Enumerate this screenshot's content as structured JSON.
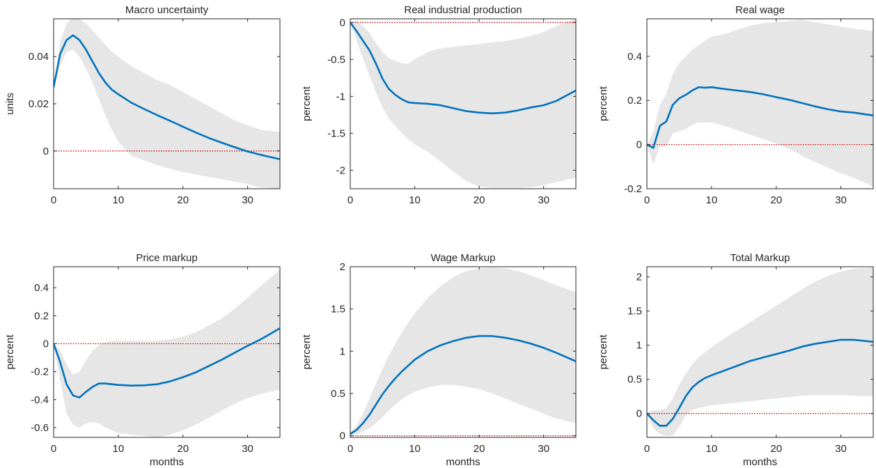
{
  "figure": {
    "ci_color": "#e6e6e6",
    "line_color": "#0072bd",
    "zero_line_color": "#d00000",
    "frame_color": "#262626"
  },
  "chart_data": [
    {
      "type": "line",
      "title": "Macro uncertainty",
      "xlabel": "",
      "ylabel": "units",
      "xlim": [
        0,
        35
      ],
      "ylim": [
        -0.016,
        0.056
      ],
      "xticks": [
        0,
        10,
        20,
        30
      ],
      "yticks": [
        0,
        0.02,
        0.04
      ],
      "ytick_labels": [
        "0",
        "0.02",
        "0.04"
      ],
      "x": [
        0,
        1,
        2,
        3,
        4,
        5,
        6,
        7,
        8,
        9,
        10,
        12,
        14,
        16,
        18,
        20,
        22,
        24,
        26,
        28,
        30,
        32,
        35
      ],
      "series": [
        {
          "values": [
            0.027,
            0.041,
            0.047,
            0.049,
            0.047,
            0.043,
            0.038,
            0.033,
            0.029,
            0.026,
            0.024,
            0.0205,
            0.0178,
            0.0152,
            0.0128,
            0.0103,
            0.0078,
            0.0055,
            0.0035,
            0.0016,
            -0.0002,
            -0.0016,
            -0.0035
          ]
        }
      ],
      "ci_upper": [
        0.027,
        0.046,
        0.054,
        0.057,
        0.056,
        0.054,
        0.051,
        0.048,
        0.045,
        0.042,
        0.04,
        0.036,
        0.033,
        0.03,
        0.028,
        0.025,
        0.022,
        0.019,
        0.016,
        0.013,
        0.011,
        0.009,
        0.008
      ],
      "ci_lower": [
        0.027,
        0.036,
        0.042,
        0.043,
        0.04,
        0.035,
        0.029,
        0.022,
        0.015,
        0.009,
        0.004,
        -0.002,
        -0.004,
        -0.006,
        -0.0075,
        -0.009,
        -0.01,
        -0.011,
        -0.012,
        -0.013,
        -0.014,
        -0.0155,
        -0.016
      ]
    },
    {
      "type": "line",
      "title": "Real industrial production",
      "xlabel": "",
      "ylabel": "percent",
      "xlim": [
        0,
        35
      ],
      "ylim": [
        -2.25,
        0.05
      ],
      "xticks": [
        0,
        10,
        20,
        30
      ],
      "yticks": [
        -2,
        -1.5,
        -1,
        -0.5,
        0
      ],
      "ytick_labels": [
        "-2",
        "-1.5",
        "-1",
        "-0.5",
        "0"
      ],
      "x": [
        0,
        1,
        2,
        3,
        4,
        5,
        6,
        7,
        8,
        9,
        10,
        12,
        14,
        16,
        18,
        20,
        22,
        24,
        26,
        28,
        30,
        32,
        35
      ],
      "series": [
        {
          "values": [
            0,
            -0.12,
            -0.25,
            -0.38,
            -0.56,
            -0.76,
            -0.9,
            -0.98,
            -1.04,
            -1.08,
            -1.09,
            -1.1,
            -1.12,
            -1.16,
            -1.2,
            -1.22,
            -1.23,
            -1.22,
            -1.19,
            -1.15,
            -1.12,
            -1.06,
            -0.92
          ]
        }
      ],
      "ci_upper": [
        0,
        0.02,
        -0.05,
        -0.14,
        -0.28,
        -0.4,
        -0.48,
        -0.52,
        -0.55,
        -0.56,
        -0.5,
        -0.4,
        -0.35,
        -0.33,
        -0.31,
        -0.29,
        -0.27,
        -0.25,
        -0.22,
        -0.18,
        -0.13,
        -0.05,
        0.05
      ],
      "ci_lower": [
        0,
        -0.25,
        -0.5,
        -0.72,
        -0.95,
        -1.15,
        -1.3,
        -1.4,
        -1.5,
        -1.58,
        -1.65,
        -1.75,
        -1.88,
        -2.02,
        -2.15,
        -2.22,
        -2.24,
        -2.24,
        -2.24,
        -2.23,
        -2.2,
        -2.16,
        -2.1
      ]
    },
    {
      "type": "line",
      "title": "Real wage",
      "xlabel": "",
      "ylabel": "percent",
      "xlim": [
        0,
        35
      ],
      "ylim": [
        -0.2,
        0.57
      ],
      "xticks": [
        0,
        10,
        20,
        30
      ],
      "yticks": [
        -0.2,
        0,
        0.2,
        0.4
      ],
      "ytick_labels": [
        "-0.2",
        "0",
        "0.2",
        "0.4"
      ],
      "x": [
        0,
        1,
        2,
        3,
        4,
        5,
        6,
        7,
        8,
        9,
        10,
        12,
        14,
        16,
        18,
        20,
        22,
        24,
        26,
        28,
        30,
        32,
        35
      ],
      "series": [
        {
          "values": [
            0,
            -0.015,
            0.085,
            0.105,
            0.18,
            0.21,
            0.225,
            0.245,
            0.26,
            0.258,
            0.26,
            0.252,
            0.245,
            0.238,
            0.228,
            0.215,
            0.203,
            0.188,
            0.173,
            0.16,
            0.15,
            0.145,
            0.132
          ]
        }
      ],
      "ci_upper": [
        0,
        0.06,
        0.18,
        0.23,
        0.32,
        0.37,
        0.4,
        0.43,
        0.45,
        0.47,
        0.49,
        0.5,
        0.52,
        0.54,
        0.55,
        0.555,
        0.56,
        0.565,
        0.555,
        0.545,
        0.535,
        0.525,
        0.515
      ],
      "ci_lower": [
        0,
        -0.09,
        -0.01,
        -0.01,
        0.05,
        0.06,
        0.07,
        0.09,
        0.1,
        0.1,
        0.1,
        0.085,
        0.065,
        0.045,
        0.025,
        0.005,
        -0.02,
        -0.05,
        -0.08,
        -0.105,
        -0.13,
        -0.15,
        -0.19
      ]
    },
    {
      "type": "line",
      "title": "Price markup",
      "xlabel": "months",
      "ylabel": "percent",
      "xlim": [
        0,
        35
      ],
      "ylim": [
        -0.67,
        0.55
      ],
      "xticks": [
        0,
        10,
        20,
        30
      ],
      "yticks": [
        -0.6,
        -0.4,
        -0.2,
        0,
        0.2,
        0.4
      ],
      "ytick_labels": [
        "-0.6",
        "-0.4",
        "-0.2",
        "0",
        "0.2",
        "0.4"
      ],
      "x": [
        0,
        1,
        2,
        3,
        4,
        5,
        6,
        7,
        8,
        9,
        10,
        12,
        14,
        16,
        18,
        20,
        22,
        24,
        26,
        28,
        30,
        32,
        35
      ],
      "series": [
        {
          "values": [
            0,
            -0.13,
            -0.29,
            -0.37,
            -0.385,
            -0.345,
            -0.31,
            -0.285,
            -0.285,
            -0.29,
            -0.295,
            -0.3,
            -0.298,
            -0.29,
            -0.27,
            -0.24,
            -0.205,
            -0.16,
            -0.115,
            -0.065,
            -0.015,
            0.03,
            0.11
          ]
        }
      ],
      "ci_upper": [
        0,
        -0.05,
        -0.15,
        -0.22,
        -0.2,
        -0.12,
        -0.05,
        -0.01,
        0.01,
        0.02,
        0.02,
        0.02,
        0.02,
        0.02,
        0.03,
        0.05,
        0.08,
        0.13,
        0.18,
        0.25,
        0.33,
        0.41,
        0.53
      ],
      "ci_lower": [
        0,
        -0.26,
        -0.5,
        -0.58,
        -0.6,
        -0.57,
        -0.56,
        -0.57,
        -0.6,
        -0.62,
        -0.64,
        -0.65,
        -0.66,
        -0.67,
        -0.65,
        -0.62,
        -0.58,
        -0.53,
        -0.48,
        -0.43,
        -0.39,
        -0.36,
        -0.33
      ]
    },
    {
      "type": "line",
      "title": "Wage Markup",
      "xlabel": "months",
      "ylabel": "percent",
      "xlim": [
        0,
        35
      ],
      "ylim": [
        -0.02,
        2.0
      ],
      "xticks": [
        0,
        10,
        20,
        30
      ],
      "yticks": [
        0,
        0.5,
        1,
        1.5,
        2
      ],
      "ytick_labels": [
        "0",
        "0.5",
        "1",
        "1.5",
        "2"
      ],
      "x": [
        0,
        1,
        2,
        3,
        4,
        5,
        6,
        7,
        8,
        9,
        10,
        12,
        14,
        16,
        18,
        20,
        22,
        24,
        26,
        28,
        30,
        32,
        35
      ],
      "series": [
        {
          "values": [
            0.02,
            0.07,
            0.15,
            0.25,
            0.37,
            0.49,
            0.59,
            0.68,
            0.76,
            0.83,
            0.9,
            1.0,
            1.07,
            1.12,
            1.16,
            1.18,
            1.18,
            1.16,
            1.13,
            1.09,
            1.04,
            0.98,
            0.88
          ]
        }
      ],
      "ci_upper": [
        0.03,
        0.12,
        0.27,
        0.44,
        0.62,
        0.79,
        0.95,
        1.09,
        1.22,
        1.34,
        1.45,
        1.63,
        1.77,
        1.88,
        1.95,
        1.98,
        1.99,
        1.98,
        1.95,
        1.9,
        1.84,
        1.78,
        1.7
      ],
      "ci_lower": [
        0.01,
        0.02,
        0.05,
        0.09,
        0.15,
        0.22,
        0.3,
        0.37,
        0.43,
        0.48,
        0.52,
        0.57,
        0.6,
        0.6,
        0.58,
        0.55,
        0.5,
        0.44,
        0.38,
        0.32,
        0.26,
        0.2,
        0.15
      ]
    },
    {
      "type": "line",
      "title": "Total Markup",
      "xlabel": "months",
      "ylabel": "percent",
      "xlim": [
        0,
        35
      ],
      "ylim": [
        -0.35,
        2.15
      ],
      "xticks": [
        0,
        10,
        20,
        30
      ],
      "yticks": [
        0,
        0.5,
        1,
        1.5,
        2
      ],
      "ytick_labels": [
        "0",
        "0.5",
        "1",
        "1.5",
        "2"
      ],
      "x": [
        0,
        1,
        2,
        3,
        4,
        5,
        6,
        7,
        8,
        9,
        10,
        12,
        14,
        16,
        18,
        20,
        22,
        24,
        26,
        28,
        30,
        32,
        35
      ],
      "series": [
        {
          "values": [
            0,
            -0.1,
            -0.18,
            -0.18,
            -0.08,
            0.08,
            0.25,
            0.38,
            0.46,
            0.52,
            0.56,
            0.63,
            0.7,
            0.77,
            0.82,
            0.87,
            0.92,
            0.98,
            1.02,
            1.05,
            1.08,
            1.08,
            1.05
          ]
        }
      ],
      "ci_upper": [
        0,
        0.05,
        0.05,
        0.08,
        0.22,
        0.42,
        0.58,
        0.72,
        0.82,
        0.9,
        0.97,
        1.1,
        1.22,
        1.34,
        1.46,
        1.58,
        1.7,
        1.82,
        1.93,
        2.02,
        2.08,
        2.12,
        2.14
      ],
      "ci_lower": [
        0,
        -0.22,
        -0.3,
        -0.33,
        -0.32,
        -0.2,
        -0.03,
        0.05,
        0.08,
        0.1,
        0.12,
        0.14,
        0.16,
        0.18,
        0.2,
        0.22,
        0.24,
        0.26,
        0.27,
        0.27,
        0.27,
        0.26,
        0.25
      ]
    }
  ]
}
